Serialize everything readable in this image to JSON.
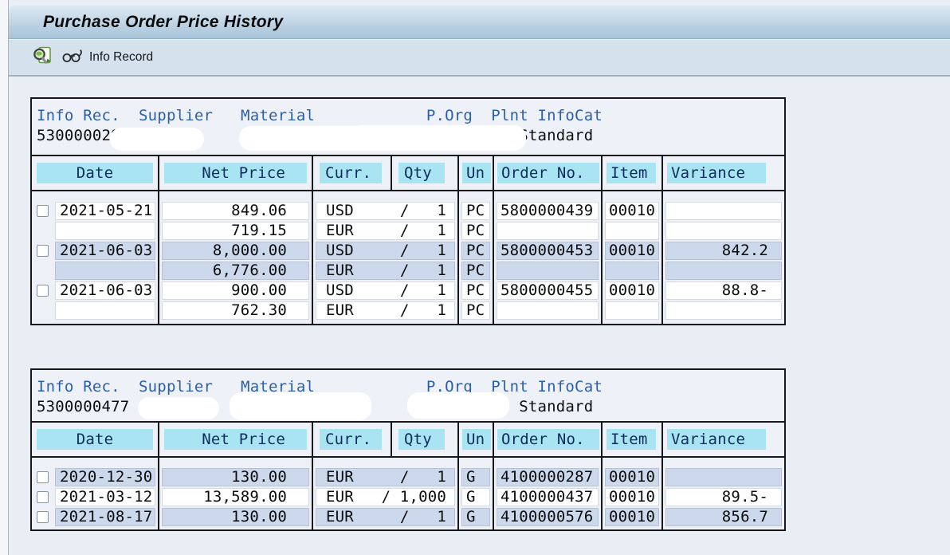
{
  "window": {
    "title": "Purchase Order Price History"
  },
  "toolbar": {
    "buttons": [
      {
        "icon": "magnifier-detail-icon"
      },
      {
        "icon": "glasses-display-icon",
        "label": "Info Record"
      }
    ],
    "info_record_label": "Info Record"
  },
  "colors": {
    "header_highlight_cyan": "#a9e4f3",
    "row_stripe_blue": "#ccd8ec",
    "label_blue": "#2a5fae",
    "titlebar_gradient_top": "#dde9f3",
    "titlebar_gradient_bottom": "#a7c3d9",
    "toolbar_bg": "#d5e2ed",
    "page_bg": "#e9eef5",
    "table_border": "#17181a"
  },
  "info_labels": "Info Rec.  Supplier   Material            P.Org  Plnt InfoCat",
  "columns": [
    "Date",
    "Net Price",
    "Curr.",
    "Qty",
    "Un",
    "Order No.",
    "Item",
    "Variance"
  ],
  "blocks": [
    {
      "info_rec": "5300000299",
      "info_cat": "Standard",
      "rows": [
        {
          "date": "2021-05-21",
          "checked": false,
          "stripe": "white",
          "order": "5800000439",
          "item": "00010",
          "variance": "",
          "lines": [
            {
              "price": "849.06",
              "curr": "USD",
              "qty": "1",
              "un": "PC"
            },
            {
              "price": "719.15",
              "curr": "EUR",
              "qty": "1",
              "un": "PC"
            }
          ]
        },
        {
          "date": "2021-06-03",
          "checked": false,
          "stripe": "blue",
          "order": "5800000453",
          "item": "00010",
          "variance": "842.2",
          "lines": [
            {
              "price": "8,000.00",
              "curr": "USD",
              "qty": "1",
              "un": "PC"
            },
            {
              "price": "6,776.00",
              "curr": "EUR",
              "qty": "1",
              "un": "PC"
            }
          ]
        },
        {
          "date": "2021-06-03",
          "checked": false,
          "stripe": "white",
          "order": "5800000455",
          "item": "00010",
          "variance": "88.8-",
          "lines": [
            {
              "price": "900.00",
              "curr": "USD",
              "qty": "1",
              "un": "PC"
            },
            {
              "price": "762.30",
              "curr": "EUR",
              "qty": "1",
              "un": "PC"
            }
          ]
        }
      ]
    },
    {
      "info_rec": "5300000477",
      "info_cat": "Standard",
      "rows": [
        {
          "date": "2020-12-30",
          "checked": false,
          "stripe": "blue",
          "order": "4100000287",
          "item": "00010",
          "variance": "",
          "lines": [
            {
              "price": "130.00",
              "curr": "EUR",
              "qty": "1",
              "un": "G"
            }
          ]
        },
        {
          "date": "2021-03-12",
          "checked": false,
          "stripe": "white",
          "order": "4100000437",
          "item": "00010",
          "variance": "89.5-",
          "lines": [
            {
              "price": "13,589.00",
              "curr": "EUR",
              "qty": "1,000",
              "un": "G"
            }
          ]
        },
        {
          "date": "2021-08-17",
          "checked": false,
          "stripe": "blue",
          "order": "4100000576",
          "item": "00010",
          "variance": "856.7",
          "lines": [
            {
              "price": "130.00",
              "curr": "EUR",
              "qty": "1",
              "un": "G"
            }
          ]
        }
      ]
    }
  ]
}
